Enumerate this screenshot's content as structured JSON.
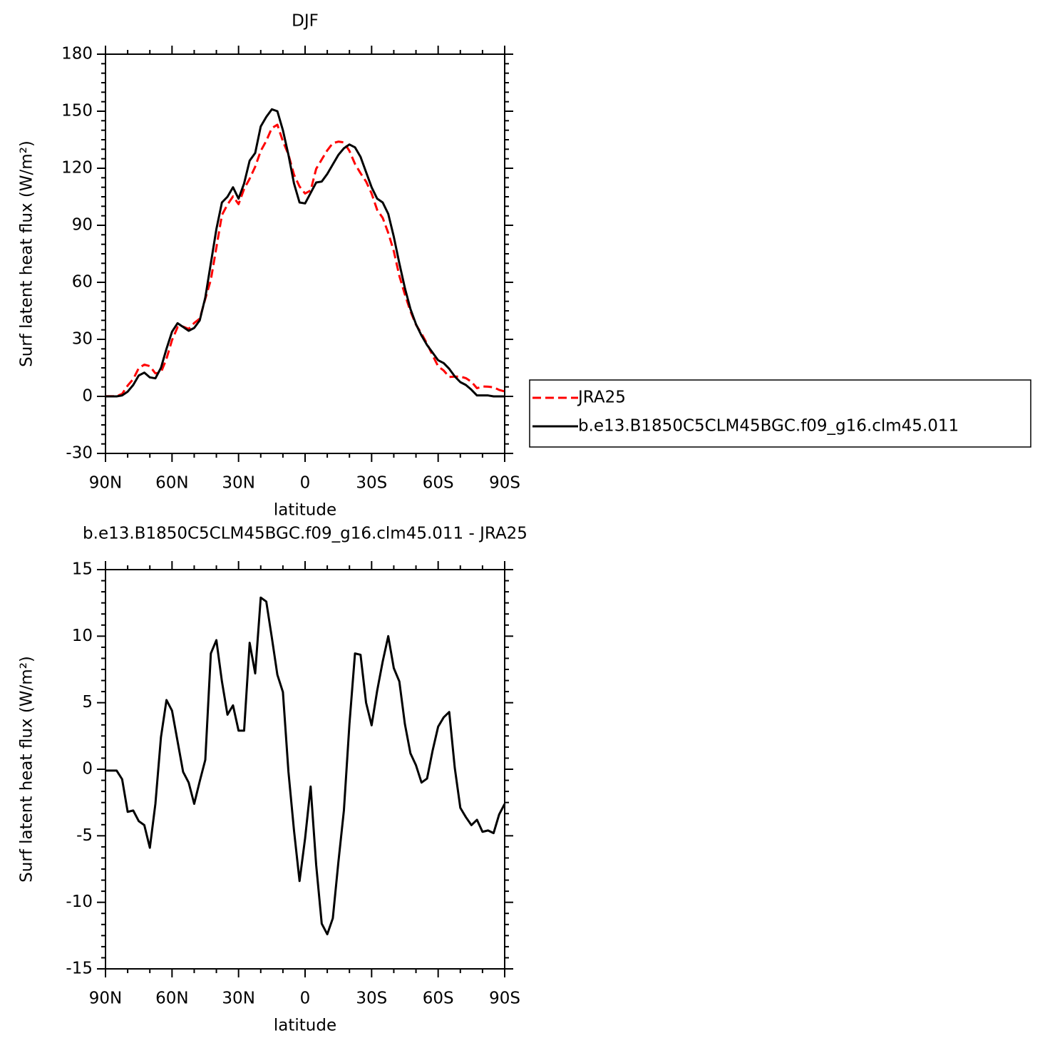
{
  "chart_data": [
    {
      "type": "line",
      "title": "DJF",
      "x_label": "latitude",
      "y_label": "Surf latent heat flux (W/m²)",
      "x": [
        90,
        87.5,
        85,
        82.5,
        80,
        77.5,
        75,
        72.5,
        70,
        67.5,
        65,
        62.5,
        60,
        57.5,
        55,
        52.5,
        50,
        47.5,
        45,
        42.5,
        40,
        37.5,
        35,
        32.5,
        30,
        27.5,
        25,
        22.5,
        20,
        17.5,
        15,
        12.5,
        10,
        7.5,
        5,
        2.5,
        0,
        -2.5,
        -5,
        -7.5,
        -10,
        -12.5,
        -15,
        -17.5,
        -20,
        -22.5,
        -25,
        -27.5,
        -30,
        -32.5,
        -35,
        -37.5,
        -40,
        -42.5,
        -45,
        -47.5,
        -50,
        -52.5,
        -55,
        -57.5,
        -60,
        -62.5,
        -65,
        -67.5,
        -70,
        -72.5,
        -75,
        -77.5,
        -80,
        -82.5,
        -85,
        -87.5,
        -90
      ],
      "series": [
        {
          "name": "JRA25",
          "color": "#ff0000",
          "dashed": true,
          "values": [
            0.1,
            0.1,
            0.1,
            1.3,
            5.7,
            9.1,
            14.9,
            16.7,
            15.9,
            12.1,
            12.6,
            19.8,
            29.6,
            36.4,
            36.7,
            35.5,
            38.6,
            40.9,
            51.3,
            61.3,
            78.3,
            95.4,
            100.9,
            105.2,
            101.1,
            109.1,
            114.5,
            120.8,
            129.1,
            134.4,
            141.1,
            142.9,
            134.2,
            127.2,
            116.6,
            110.4,
            106.7,
            108.3,
            119.7,
            124.6,
            129.4,
            133.2,
            134,
            133.6,
            129.1,
            122.3,
            117.4,
            113,
            106.7,
            98.1,
            93.9,
            86,
            76.4,
            63.4,
            53.6,
            44.8,
            37.7,
            33,
            27.7,
            21.6,
            15.8,
            13.6,
            10.2,
            10.4,
            10.4,
            9.6,
            7.7,
            4.3,
            5.2,
            5.1,
            4.8,
            3.4,
            2.6
          ]
        },
        {
          "name": "b.e13.B1850C5CLM45BGC.f09_g16.clm45.011",
          "color": "#000000",
          "dashed": false,
          "values": [
            0,
            0,
            0,
            0.5,
            2.5,
            6,
            11,
            12.5,
            10,
            9.5,
            15,
            25,
            34,
            38.5,
            36.5,
            34.5,
            36,
            40,
            52,
            70,
            88,
            102,
            105,
            110,
            104,
            112,
            124,
            128,
            142,
            147,
            151,
            150,
            140,
            127,
            112,
            102,
            101.5,
            107,
            112.5,
            113,
            117,
            122,
            127,
            130.5,
            132.5,
            131,
            126,
            118,
            110,
            104,
            102,
            96,
            84,
            70,
            57,
            46,
            38,
            32,
            27,
            23,
            19,
            17.5,
            14.5,
            10.5,
            7.5,
            6,
            3.5,
            0.5,
            0.5,
            0.5,
            0,
            0,
            0
          ]
        }
      ],
      "xlim": [
        90,
        -90
      ],
      "xticks": [
        {
          "value": 90,
          "label": "90N"
        },
        {
          "value": 60,
          "label": "60N"
        },
        {
          "value": 30,
          "label": "30N"
        },
        0,
        {
          "value": -30,
          "label": "30S"
        },
        {
          "value": -60,
          "label": "60S"
        },
        {
          "value": -90,
          "label": "90S"
        }
      ],
      "ylim": [
        -30,
        180
      ],
      "yticks": [
        -30,
        0,
        30,
        60,
        90,
        120,
        150,
        180
      ],
      "legend": true
    },
    {
      "type": "line",
      "title": "b.e13.B1850C5CLM45BGC.f09_g16.clm45.011 - JRA25",
      "x_label": "latitude",
      "y_label": "Surf latent heat flux (W/m²)",
      "x": [
        90,
        87.5,
        85,
        82.5,
        80,
        77.5,
        75,
        72.5,
        70,
        67.5,
        65,
        62.5,
        60,
        57.5,
        55,
        52.5,
        50,
        47.5,
        45,
        42.5,
        40,
        37.5,
        35,
        32.5,
        30,
        27.5,
        25,
        22.5,
        20,
        17.5,
        15,
        12.5,
        10,
        7.5,
        5,
        2.5,
        0,
        -2.5,
        -5,
        -7.5,
        -10,
        -12.5,
        -15,
        -17.5,
        -20,
        -22.5,
        -25,
        -27.5,
        -30,
        -32.5,
        -35,
        -37.5,
        -40,
        -42.5,
        -45,
        -47.5,
        -50,
        -52.5,
        -55,
        -57.5,
        -60,
        -62.5,
        -65,
        -67.5,
        -70,
        -72.5,
        -75,
        -77.5,
        -80,
        -82.5,
        -85,
        -87.5,
        -90
      ],
      "series": [
        {
          "color": "#000000",
          "dashed": false,
          "values": [
            -0.1,
            -0.1,
            -0.1,
            -0.75,
            -3.2,
            -3.1,
            -3.9,
            -4.2,
            -5.9,
            -2.6,
            2.4,
            5.2,
            4.4,
            2.1,
            -0.2,
            -1,
            -2.6,
            -0.9,
            0.7,
            8.7,
            9.7,
            6.6,
            4.1,
            4.8,
            2.9,
            2.9,
            9.5,
            7.2,
            12.9,
            12.6,
            9.9,
            7.1,
            5.8,
            -0.2,
            -4.6,
            -8.4,
            -5.2,
            -1.3,
            -7.2,
            -11.6,
            -12.4,
            -11.2,
            -7,
            -3.1,
            3.4,
            8.7,
            8.6,
            5,
            3.3,
            5.9,
            8.1,
            10,
            7.6,
            6.6,
            3.4,
            1.2,
            0.3,
            -1,
            -0.7,
            1.4,
            3.2,
            3.9,
            4.3,
            0.1,
            -2.9,
            -3.6,
            -4.2,
            -3.8,
            -4.7,
            -4.6,
            -4.8,
            -3.4,
            -2.6
          ]
        }
      ],
      "xlim": [
        90,
        -90
      ],
      "xticks": [
        {
          "value": 90,
          "label": "90N"
        },
        {
          "value": 60,
          "label": "60N"
        },
        {
          "value": 30,
          "label": "30N"
        },
        0,
        {
          "value": -30,
          "label": "30S"
        },
        {
          "value": -60,
          "label": "60S"
        },
        {
          "value": -90,
          "label": "90S"
        }
      ],
      "ylim": [
        -15,
        15
      ],
      "yticks": [
        -15,
        -10,
        -5,
        0,
        5,
        10,
        15
      ],
      "legend": false
    }
  ]
}
